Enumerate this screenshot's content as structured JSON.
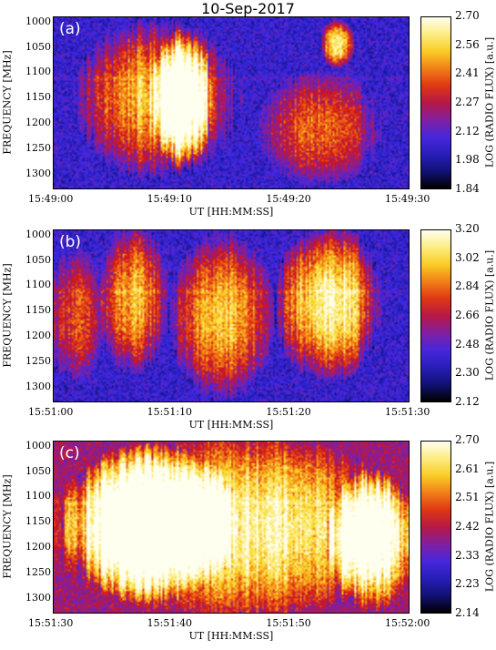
{
  "title": "10-Sep-2017",
  "colorbar_label": "LOG (RADIO FLUX) [a.u.]",
  "ylabel": "FREQUENCY [MHz]",
  "xlabel": "UT [HH:MM:SS]",
  "chart_data": [
    {
      "type": "heatmap",
      "panel_label": "(a)",
      "xlabel": "UT [HH:MM:SS]",
      "ylabel": "FREQUENCY [MHz]",
      "x_ticks": [
        "15:49:00",
        "15:49:10",
        "15:49:20",
        "15:49:30"
      ],
      "y_ticks": [
        "1000",
        "1050",
        "1100",
        "1150",
        "1200",
        "1250",
        "1300"
      ],
      "ylim_mhz": [
        990,
        1330
      ],
      "colorbar_ticks": [
        "2.70",
        "2.56",
        "2.41",
        "2.27",
        "2.12",
        "1.98",
        "1.84"
      ],
      "colorbar_range": [
        1.84,
        2.7
      ],
      "bursts": [
        {
          "t0": 0.08,
          "t1": 0.5,
          "f0": 0.05,
          "f1": 0.9,
          "strength": 0.75
        },
        {
          "t0": 0.3,
          "t1": 0.42,
          "f0": 0.1,
          "f1": 0.85,
          "strength": 0.95
        },
        {
          "t0": 0.6,
          "t1": 0.9,
          "f0": 0.35,
          "f1": 0.95,
          "strength": 0.55
        },
        {
          "t0": 0.78,
          "t1": 0.82,
          "f0": 0.05,
          "f1": 0.25,
          "strength": 0.9
        }
      ]
    },
    {
      "type": "heatmap",
      "panel_label": "(b)",
      "xlabel": "UT [HH:MM:SS]",
      "ylabel": "FREQUENCY [MHz]",
      "x_ticks": [
        "15:51:00",
        "15:51:10",
        "15:51:20",
        "15:51:30"
      ],
      "y_ticks": [
        "1000",
        "1050",
        "1100",
        "1150",
        "1200",
        "1250",
        "1300"
      ],
      "ylim_mhz": [
        990,
        1330
      ],
      "colorbar_ticks": [
        "3.20",
        "3.02",
        "2.84",
        "2.66",
        "2.48",
        "2.30",
        "2.12"
      ],
      "colorbar_range": [
        2.12,
        3.2
      ],
      "bursts": [
        {
          "t0": 0.0,
          "t1": 0.12,
          "f0": 0.15,
          "f1": 0.85,
          "strength": 0.5
        },
        {
          "t0": 0.15,
          "t1": 0.3,
          "f0": 0.0,
          "f1": 0.8,
          "strength": 0.7
        },
        {
          "t0": 0.35,
          "t1": 0.6,
          "f0": 0.05,
          "f1": 0.95,
          "strength": 0.75
        },
        {
          "t0": 0.65,
          "t1": 0.9,
          "f0": 0.0,
          "f1": 0.85,
          "strength": 0.95
        }
      ]
    },
    {
      "type": "heatmap",
      "panel_label": "(c)",
      "xlabel": "UT [HH:MM:SS]",
      "ylabel": "FREQUENCY [MHz]",
      "x_ticks": [
        "15:51:30",
        "15:51:40",
        "15:51:50",
        "15:52:00"
      ],
      "y_ticks": [
        "1000",
        "1050",
        "1100",
        "1150",
        "1200",
        "1250",
        "1300"
      ],
      "ylim_mhz": [
        990,
        1330
      ],
      "colorbar_ticks": [
        "2.70",
        "2.61",
        "2.51",
        "2.42",
        "2.33",
        "2.23",
        "2.14"
      ],
      "colorbar_range": [
        2.14,
        2.7
      ],
      "bursts": [
        {
          "t0": 0.0,
          "t1": 1.0,
          "f0": 0.0,
          "f1": 1.0,
          "strength": 0.7
        },
        {
          "t0": 0.05,
          "t1": 0.5,
          "f0": 0.05,
          "f1": 0.9,
          "strength": 0.85
        },
        {
          "t0": 0.8,
          "t1": 1.0,
          "f0": 0.2,
          "f1": 0.95,
          "strength": 0.95
        }
      ]
    }
  ]
}
